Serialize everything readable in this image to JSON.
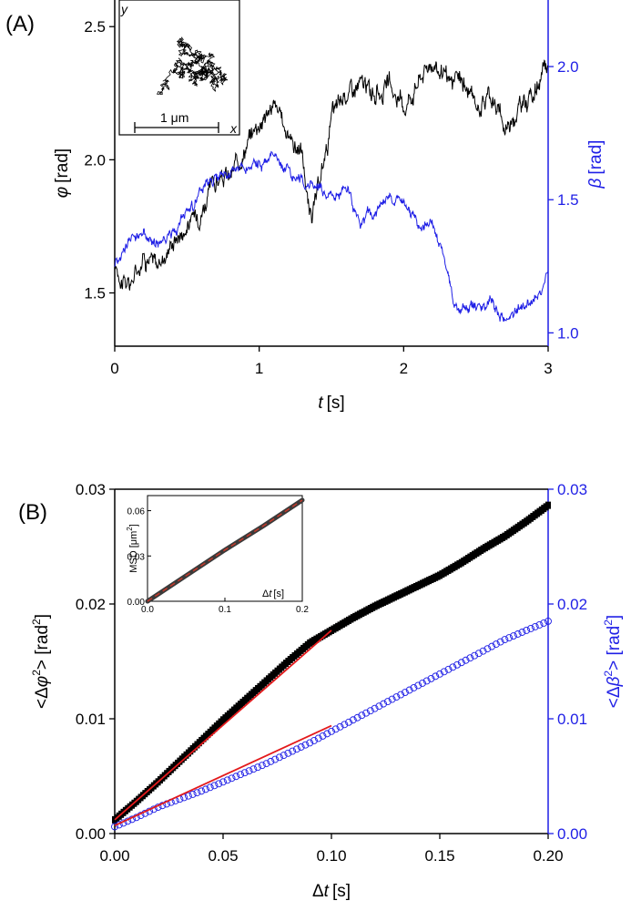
{
  "panels": {
    "a": {
      "label": "(A)"
    },
    "b": {
      "label": "(B)"
    }
  },
  "colors": {
    "left": "#000000",
    "right": "#1f1fe6",
    "fit": "#e31a1c",
    "inset_fit": "#c0392b"
  },
  "chart_data": [
    {
      "type": "line",
      "panel": "(A)",
      "xlabel_italic": "t",
      "xlabel_unit": "[s]",
      "xlim": [
        0,
        3
      ],
      "xticks": [
        0,
        1,
        2,
        3
      ],
      "y_left": {
        "label_italic": "φ",
        "label_unit": "[rad]",
        "lim": [
          1.3,
          2.6
        ],
        "ticks": [
          1.5,
          2.0,
          2.5
        ],
        "tick_labels": [
          "1.5",
          "2.0",
          "2.5"
        ]
      },
      "y_right": {
        "label_italic": "β",
        "label_unit": "[rad]",
        "lim": [
          0.95,
          2.25
        ],
        "ticks": [
          1.0,
          1.5,
          2.0
        ],
        "tick_labels": [
          "1.0",
          "1.5",
          "2.0"
        ]
      },
      "series": [
        {
          "axis": "left",
          "color": "#000000",
          "x": [
            0,
            0.1,
            0.2,
            0.3,
            0.4,
            0.5,
            0.6,
            0.7,
            0.8,
            0.9,
            1.0,
            1.1,
            1.2,
            1.3,
            1.35,
            1.4,
            1.5,
            1.6,
            1.7,
            1.8,
            1.9,
            2.0,
            2.1,
            2.2,
            2.3,
            2.4,
            2.5,
            2.6,
            2.7,
            2.8,
            2.9,
            3.0
          ],
          "y": [
            1.6,
            1.52,
            1.65,
            1.6,
            1.7,
            1.75,
            1.82,
            1.92,
            1.93,
            2.05,
            2.15,
            2.2,
            2.1,
            2.02,
            1.78,
            1.85,
            2.15,
            2.25,
            2.28,
            2.25,
            2.27,
            2.2,
            2.3,
            2.38,
            2.28,
            2.3,
            2.2,
            2.25,
            2.12,
            2.2,
            2.25,
            2.35
          ]
        },
        {
          "axis": "right",
          "color": "#1f1fe6",
          "x": [
            0,
            0.1,
            0.2,
            0.3,
            0.4,
            0.5,
            0.6,
            0.7,
            0.8,
            0.9,
            1.0,
            1.1,
            1.2,
            1.3,
            1.4,
            1.5,
            1.6,
            1.7,
            1.8,
            1.9,
            2.0,
            2.1,
            2.2,
            2.3,
            2.35,
            2.4,
            2.5,
            2.6,
            2.7,
            2.8,
            2.9,
            3.0
          ],
          "y": [
            1.26,
            1.35,
            1.37,
            1.33,
            1.38,
            1.45,
            1.52,
            1.58,
            1.6,
            1.62,
            1.63,
            1.65,
            1.62,
            1.57,
            1.55,
            1.5,
            1.54,
            1.42,
            1.45,
            1.5,
            1.5,
            1.38,
            1.42,
            1.25,
            1.1,
            1.08,
            1.1,
            1.12,
            1.04,
            1.1,
            1.12,
            1.22
          ]
        }
      ],
      "inset": {
        "type": "scatter",
        "scale_label": "1 μm",
        "x_label": "x",
        "y_label": "y"
      }
    },
    {
      "type": "scatter",
      "panel": "(B)",
      "xlabel_prefix": "Δ",
      "xlabel_italic": "t",
      "xlabel_unit": "[s]",
      "xlim": [
        0,
        0.2
      ],
      "xticks": [
        0,
        0.05,
        0.1,
        0.15,
        0.2
      ],
      "xtick_labels": [
        "0.00",
        "0.05",
        "0.10",
        "0.15",
        "0.20"
      ],
      "y_left": {
        "label_pre": "<Δ",
        "label_italic": "φ",
        "label_sup": "2",
        "label_post": "> [rad",
        "label_sup2": "2",
        "label_end": "]",
        "lim": [
          0,
          0.03
        ],
        "ticks": [
          0,
          0.01,
          0.02,
          0.03
        ],
        "tick_labels": [
          "0.00",
          "0.01",
          "0.02",
          "0.03"
        ]
      },
      "y_right": {
        "label_pre": "<Δ",
        "label_italic": "β",
        "label_sup": "2",
        "label_post": "> [rad",
        "label_sup2": "2",
        "label_end": "]",
        "lim": [
          0,
          0.03
        ],
        "ticks": [
          0,
          0.01,
          0.02,
          0.03
        ],
        "tick_labels": [
          "0.00",
          "0.01",
          "0.02",
          "0.03"
        ]
      },
      "series": [
        {
          "axis": "left",
          "marker": "filled-square",
          "color": "#000000",
          "x": [
            0.0,
            0.01,
            0.02,
            0.03,
            0.04,
            0.05,
            0.06,
            0.07,
            0.08,
            0.09,
            0.1,
            0.11,
            0.12,
            0.13,
            0.14,
            0.15,
            0.16,
            0.17,
            0.18,
            0.19,
            0.2
          ],
          "y": [
            0.0012,
            0.0028,
            0.0045,
            0.0063,
            0.0081,
            0.0099,
            0.0116,
            0.0133,
            0.015,
            0.0166,
            0.0177,
            0.0188,
            0.0198,
            0.0207,
            0.0216,
            0.0225,
            0.0236,
            0.0248,
            0.0259,
            0.0272,
            0.0286
          ]
        },
        {
          "axis": "right",
          "marker": "open-circle",
          "color": "#1f1fe6",
          "x": [
            0.0,
            0.01,
            0.02,
            0.03,
            0.04,
            0.05,
            0.06,
            0.07,
            0.08,
            0.09,
            0.1,
            0.11,
            0.12,
            0.13,
            0.14,
            0.15,
            0.16,
            0.17,
            0.18,
            0.19,
            0.2
          ],
          "y": [
            0.0006,
            0.0014,
            0.0023,
            0.003,
            0.0037,
            0.0045,
            0.0053,
            0.0061,
            0.007,
            0.0079,
            0.0089,
            0.0099,
            0.0109,
            0.0119,
            0.0129,
            0.0139,
            0.0149,
            0.0159,
            0.0169,
            0.0177,
            0.0185
          ]
        }
      ],
      "fits": [
        {
          "axis": "left",
          "color": "#e31a1c",
          "x": [
            0,
            0.1
          ],
          "y": [
            0.0012,
            0.0177
          ]
        },
        {
          "axis": "right",
          "color": "#e31a1c",
          "x": [
            0,
            0.1
          ],
          "y": [
            0.0007,
            0.0094
          ]
        }
      ],
      "inset": {
        "type": "line",
        "xlabel_prefix": "Δ",
        "xlabel_italic": "t",
        "xlabel_unit": "[s]",
        "ylabel": "MSD [μm",
        "ylabel_sup": "2",
        "ylabel_end": "]",
        "xlim": [
          0,
          0.2
        ],
        "ylim": [
          0,
          0.07
        ],
        "xticks": [
          0,
          0.1,
          0.2
        ],
        "xtick_labels": [
          "0.0",
          "0.1",
          "0.2"
        ],
        "yticks": [
          0,
          0.03,
          0.06
        ],
        "ytick_labels": [
          "0.00",
          "0.03",
          "0.06"
        ],
        "series": [
          {
            "x": [
              0,
              0.05,
              0.1,
              0.15,
              0.2
            ],
            "y": [
              0.0,
              0.017,
              0.034,
              0.05,
              0.067
            ]
          }
        ]
      }
    }
  ]
}
